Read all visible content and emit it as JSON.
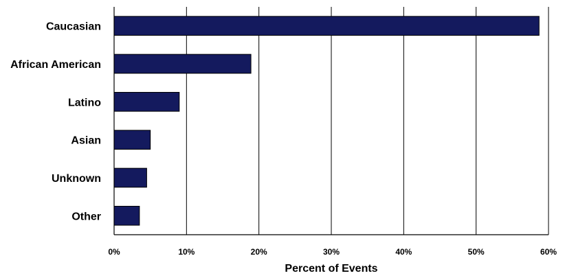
{
  "chart_data": {
    "type": "bar",
    "orientation": "horizontal",
    "categories": [
      "Caucasian",
      "African American",
      "Latino",
      "Asian",
      "Unknown",
      "Other"
    ],
    "values": [
      58.7,
      18.9,
      9.0,
      5.0,
      4.5,
      3.5
    ],
    "unit": "%",
    "title": "",
    "xlabel": "Percent of Events",
    "ylabel": "",
    "xlim": [
      0,
      60
    ],
    "xticks": [
      "0%",
      "10%",
      "20%",
      "30%",
      "40%",
      "50%",
      "60%"
    ],
    "grid": "vertical",
    "legend": "none",
    "bar_color": "#141a5e"
  }
}
